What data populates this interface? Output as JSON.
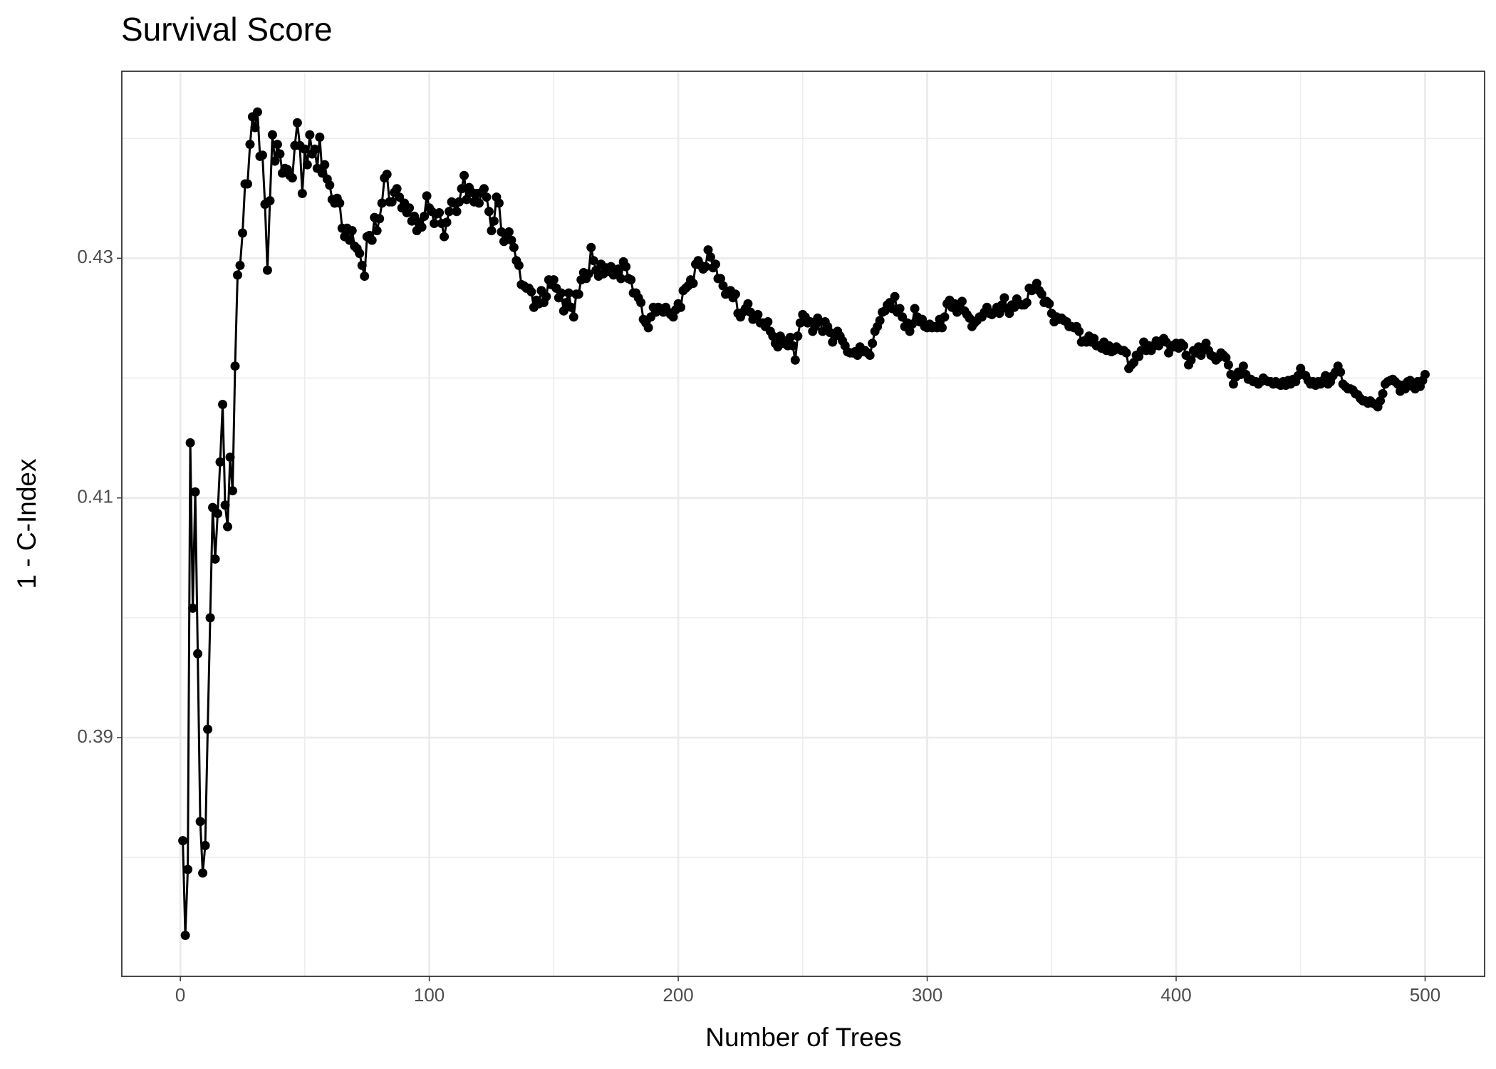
{
  "chart_data": {
    "type": "line",
    "title": "Survival Score",
    "x_label": "Number of Trees",
    "y_label": "1 - C-Index",
    "xlim": [
      -23.5,
      523.9
    ],
    "ylim": [
      0.37008,
      0.4456
    ],
    "xticks": [
      0,
      100,
      200,
      300,
      400,
      500
    ],
    "yticks": [
      0.39,
      0.41,
      0.43
    ],
    "grid": true,
    "minor_grid": true,
    "markers": true,
    "series": [
      {
        "name": "1 - C-Index",
        "color": "#000000",
        "x": [
          1,
          2,
          3,
          4,
          5,
          6,
          7,
          8,
          9,
          10,
          11,
          12,
          13,
          14,
          15,
          16,
          17,
          18,
          19,
          20,
          21,
          22,
          23,
          24,
          25,
          26,
          27,
          28,
          29,
          30,
          31,
          32,
          33,
          34,
          35,
          36,
          37,
          38,
          39,
          40,
          41,
          42,
          43,
          44,
          45,
          46,
          47,
          48,
          49,
          50,
          51,
          52,
          53,
          54,
          55,
          56,
          57,
          58,
          59,
          60,
          61,
          62,
          63,
          64,
          65,
          66,
          67,
          68,
          69,
          70,
          71,
          72,
          73,
          74,
          75,
          76,
          77,
          78,
          79,
          80,
          81,
          82,
          83,
          84,
          85,
          86,
          87,
          88,
          89,
          90,
          91,
          92,
          93,
          94,
          95,
          96,
          97,
          98,
          99,
          100,
          101,
          102,
          103,
          104,
          105,
          106,
          107,
          108,
          109,
          110,
          111,
          112,
          113,
          114,
          115,
          116,
          117,
          118,
          119,
          120,
          121,
          122,
          123,
          124,
          125,
          126,
          127,
          128,
          129,
          130,
          131,
          132,
          133,
          134,
          135,
          136,
          137,
          138,
          139,
          140,
          141,
          142,
          143,
          144,
          145,
          146,
          147,
          148,
          149,
          150,
          151,
          152,
          153,
          154,
          155,
          156,
          157,
          158,
          159,
          160,
          161,
          162,
          163,
          164,
          165,
          166,
          167,
          168,
          169,
          170,
          171,
          172,
          173,
          174,
          175,
          176,
          177,
          178,
          179,
          180,
          181,
          182,
          183,
          184,
          185,
          186,
          187,
          188,
          189,
          190,
          191,
          192,
          193,
          194,
          195,
          196,
          197,
          198,
          199,
          200,
          201,
          202,
          203,
          204,
          205,
          206,
          207,
          208,
          209,
          210,
          211,
          212,
          213,
          214,
          215,
          216,
          217,
          218,
          219,
          220,
          221,
          222,
          223,
          224,
          225,
          226,
          227,
          228,
          229,
          230,
          231,
          232,
          233,
          234,
          235,
          236,
          237,
          238,
          239,
          240,
          241,
          242,
          243,
          244,
          245,
          246,
          247,
          248,
          249,
          250,
          251,
          252,
          253,
          254,
          255,
          256,
          257,
          258,
          259,
          260,
          261,
          262,
          263,
          264,
          265,
          266,
          267,
          268,
          269,
          270,
          271,
          272,
          273,
          274,
          275,
          276,
          277,
          278,
          279,
          280,
          281,
          282,
          283,
          284,
          285,
          286,
          287,
          288,
          289,
          290,
          291,
          292,
          293,
          294,
          295,
          296,
          297,
          298,
          299,
          300,
          301,
          302,
          303,
          304,
          305,
          306,
          307,
          308,
          309,
          310,
          311,
          312,
          313,
          314,
          315,
          316,
          317,
          318,
          319,
          320,
          321,
          322,
          323,
          324,
          325,
          326,
          327,
          328,
          329,
          330,
          331,
          332,
          333,
          334,
          335,
          336,
          337,
          338,
          339,
          340,
          341,
          342,
          343,
          344,
          345,
          346,
          347,
          348,
          349,
          350,
          351,
          352,
          353,
          354,
          355,
          356,
          357,
          358,
          359,
          360,
          361,
          362,
          363,
          364,
          365,
          366,
          367,
          368,
          369,
          370,
          371,
          372,
          373,
          374,
          375,
          376,
          377,
          378,
          379,
          380,
          381,
          382,
          383,
          384,
          385,
          386,
          387,
          388,
          389,
          390,
          391,
          392,
          393,
          394,
          395,
          396,
          397,
          398,
          399,
          400,
          401,
          402,
          403,
          404,
          405,
          406,
          407,
          408,
          409,
          410,
          411,
          412,
          413,
          414,
          415,
          416,
          417,
          418,
          419,
          420,
          421,
          422,
          423,
          424,
          425,
          426,
          427,
          428,
          429,
          430,
          431,
          432,
          433,
          434,
          435,
          436,
          437,
          438,
          439,
          440,
          441,
          442,
          443,
          444,
          445,
          446,
          447,
          448,
          449,
          450,
          451,
          452,
          453,
          454,
          455,
          456,
          457,
          458,
          459,
          460,
          461,
          462,
          463,
          464,
          465,
          466,
          467,
          468,
          469,
          470,
          471,
          472,
          473,
          474,
          475,
          476,
          477,
          478,
          479,
          480,
          481,
          482,
          483,
          484,
          485,
          486,
          487,
          488,
          489,
          490,
          491,
          492,
          493,
          494,
          495,
          496,
          497,
          498,
          499,
          500
        ],
        "values": [
          0.3814,
          0.3735,
          0.379,
          0.4146,
          0.4008,
          0.4105,
          0.397,
          0.383,
          0.3787,
          0.381,
          0.3907,
          0.4,
          0.4092,
          0.4049,
          0.4087,
          0.413,
          0.4178,
          0.4094,
          0.4076,
          0.4134,
          0.4106,
          0.421,
          0.4286,
          0.4294,
          0.4321,
          0.4362,
          0.4362,
          0.4395,
          0.4418,
          0.4409,
          0.4422,
          0.4385,
          0.4386,
          0.4345,
          0.429,
          0.4348,
          0.4403,
          0.4381,
          0.4395,
          0.4387,
          0.4371,
          0.4375,
          0.4374,
          0.4369,
          0.4367,
          0.4394,
          0.4413,
          0.4394,
          0.4354,
          0.4391,
          0.4378,
          0.4403,
          0.4387,
          0.4391,
          0.4375,
          0.4401,
          0.4371,
          0.4378,
          0.4366,
          0.4361,
          0.4349,
          0.4346,
          0.435,
          0.4346,
          0.4325,
          0.4318,
          0.4325,
          0.4315,
          0.4323,
          0.431,
          0.4308,
          0.4304,
          0.4294,
          0.4285,
          0.4318,
          0.4319,
          0.4315,
          0.4334,
          0.4323,
          0.4333,
          0.4346,
          0.4367,
          0.437,
          0.4347,
          0.4347,
          0.4355,
          0.4358,
          0.4351,
          0.4342,
          0.4346,
          0.4338,
          0.4342,
          0.4331,
          0.4335,
          0.4323,
          0.433,
          0.4326,
          0.4335,
          0.4352,
          0.4342,
          0.4339,
          0.4329,
          0.4337,
          0.4338,
          0.4329,
          0.4318,
          0.433,
          0.4339,
          0.4347,
          0.4346,
          0.4339,
          0.4347,
          0.4358,
          0.4369,
          0.4349,
          0.4359,
          0.4355,
          0.4347,
          0.4354,
          0.4346,
          0.4355,
          0.4358,
          0.4351,
          0.4339,
          0.4323,
          0.4331,
          0.4351,
          0.4346,
          0.4322,
          0.4314,
          0.4319,
          0.4322,
          0.4315,
          0.4309,
          0.4298,
          0.4294,
          0.4278,
          0.4277,
          0.4275,
          0.4275,
          0.4272,
          0.4259,
          0.4265,
          0.4262,
          0.4273,
          0.4263,
          0.4268,
          0.4282,
          0.4278,
          0.4282,
          0.4275,
          0.4267,
          0.4271,
          0.4256,
          0.4263,
          0.4271,
          0.4259,
          0.4251,
          0.427,
          0.427,
          0.4282,
          0.4288,
          0.4283,
          0.4287,
          0.4309,
          0.4298,
          0.429,
          0.4285,
          0.4295,
          0.4287,
          0.4292,
          0.4289,
          0.4293,
          0.4286,
          0.4289,
          0.4291,
          0.4283,
          0.4297,
          0.4293,
          0.4283,
          0.4282,
          0.4271,
          0.4271,
          0.4267,
          0.4263,
          0.4249,
          0.4246,
          0.4242,
          0.4251,
          0.4259,
          0.4255,
          0.4259,
          0.4258,
          0.4255,
          0.4259,
          0.4255,
          0.4253,
          0.4251,
          0.4257,
          0.4262,
          0.4259,
          0.4273,
          0.4275,
          0.4277,
          0.4282,
          0.4279,
          0.4295,
          0.4298,
          0.4294,
          0.4291,
          0.4293,
          0.4307,
          0.4301,
          0.4292,
          0.4295,
          0.4283,
          0.4283,
          0.4277,
          0.427,
          0.4272,
          0.4273,
          0.4267,
          0.427,
          0.4254,
          0.4251,
          0.4255,
          0.4258,
          0.4262,
          0.4255,
          0.4249,
          0.425,
          0.4253,
          0.4246,
          0.4246,
          0.4243,
          0.4247,
          0.4239,
          0.4235,
          0.4229,
          0.4226,
          0.4235,
          0.4229,
          0.4231,
          0.4227,
          0.4234,
          0.4227,
          0.4215,
          0.4235,
          0.4246,
          0.4253,
          0.4251,
          0.4246,
          0.4247,
          0.4239,
          0.4243,
          0.425,
          0.4247,
          0.4239,
          0.4247,
          0.4243,
          0.4238,
          0.423,
          0.4235,
          0.4239,
          0.4235,
          0.4231,
          0.4227,
          0.4222,
          0.4221,
          0.4221,
          0.4222,
          0.4219,
          0.4226,
          0.4222,
          0.4223,
          0.4221,
          0.4219,
          0.4229,
          0.4239,
          0.4243,
          0.4248,
          0.4255,
          0.4256,
          0.4261,
          0.4263,
          0.4258,
          0.4268,
          0.4255,
          0.4258,
          0.4251,
          0.4243,
          0.4246,
          0.4239,
          0.4245,
          0.4258,
          0.4251,
          0.4247,
          0.4249,
          0.4243,
          0.4242,
          0.4245,
          0.4242,
          0.4243,
          0.4242,
          0.4249,
          0.4242,
          0.4251,
          0.4262,
          0.4265,
          0.4259,
          0.4262,
          0.4255,
          0.4258,
          0.4264,
          0.4256,
          0.4253,
          0.425,
          0.4243,
          0.4246,
          0.4248,
          0.4251,
          0.4251,
          0.4255,
          0.4259,
          0.4254,
          0.4253,
          0.4255,
          0.4259,
          0.4254,
          0.4261,
          0.4267,
          0.4258,
          0.4254,
          0.4261,
          0.4259,
          0.4266,
          0.4262,
          0.4261,
          0.4261,
          0.4263,
          0.4275,
          0.4273,
          0.4275,
          0.4279,
          0.4273,
          0.427,
          0.4263,
          0.4264,
          0.4262,
          0.4254,
          0.4247,
          0.4251,
          0.4249,
          0.425,
          0.4248,
          0.4247,
          0.4243,
          0.4243,
          0.4242,
          0.4243,
          0.4239,
          0.423,
          0.4231,
          0.423,
          0.4235,
          0.423,
          0.4233,
          0.4227,
          0.4227,
          0.4225,
          0.423,
          0.4223,
          0.4227,
          0.4222,
          0.4223,
          0.4226,
          0.4224,
          0.4223,
          0.4223,
          0.4221,
          0.4208,
          0.4211,
          0.4213,
          0.4219,
          0.4218,
          0.4223,
          0.423,
          0.4223,
          0.4227,
          0.4223,
          0.4227,
          0.4231,
          0.4227,
          0.4231,
          0.4233,
          0.423,
          0.4221,
          0.4227,
          0.4226,
          0.4229,
          0.4225,
          0.4229,
          0.4227,
          0.4219,
          0.4211,
          0.4215,
          0.4223,
          0.4221,
          0.4226,
          0.4219,
          0.4225,
          0.4229,
          0.4223,
          0.4219,
          0.4218,
          0.4215,
          0.4217,
          0.4221,
          0.4219,
          0.4217,
          0.4211,
          0.4203,
          0.4195,
          0.4201,
          0.4205,
          0.4203,
          0.421,
          0.4203,
          0.4199,
          0.4199,
          0.4197,
          0.4197,
          0.4195,
          0.4197,
          0.42,
          0.4198,
          0.4197,
          0.4197,
          0.4195,
          0.4197,
          0.4195,
          0.4194,
          0.4197,
          0.4194,
          0.4198,
          0.4195,
          0.4199,
          0.4197,
          0.4202,
          0.4208,
          0.4203,
          0.4202,
          0.4198,
          0.4195,
          0.4197,
          0.4194,
          0.4197,
          0.4195,
          0.4198,
          0.4202,
          0.4195,
          0.4197,
          0.4202,
          0.4205,
          0.421,
          0.4205,
          0.4195,
          0.4193,
          0.4191,
          0.4191,
          0.419,
          0.4187,
          0.4186,
          0.4183,
          0.4181,
          0.4181,
          0.4179,
          0.4181,
          0.4179,
          0.4178,
          0.4176,
          0.4181,
          0.4187,
          0.4195,
          0.4197,
          0.4198,
          0.4199,
          0.4197,
          0.4195,
          0.4189,
          0.4194,
          0.4191,
          0.4197,
          0.4198,
          0.4193,
          0.4191,
          0.4197,
          0.4193,
          0.4198,
          0.4203
        ]
      }
    ]
  }
}
